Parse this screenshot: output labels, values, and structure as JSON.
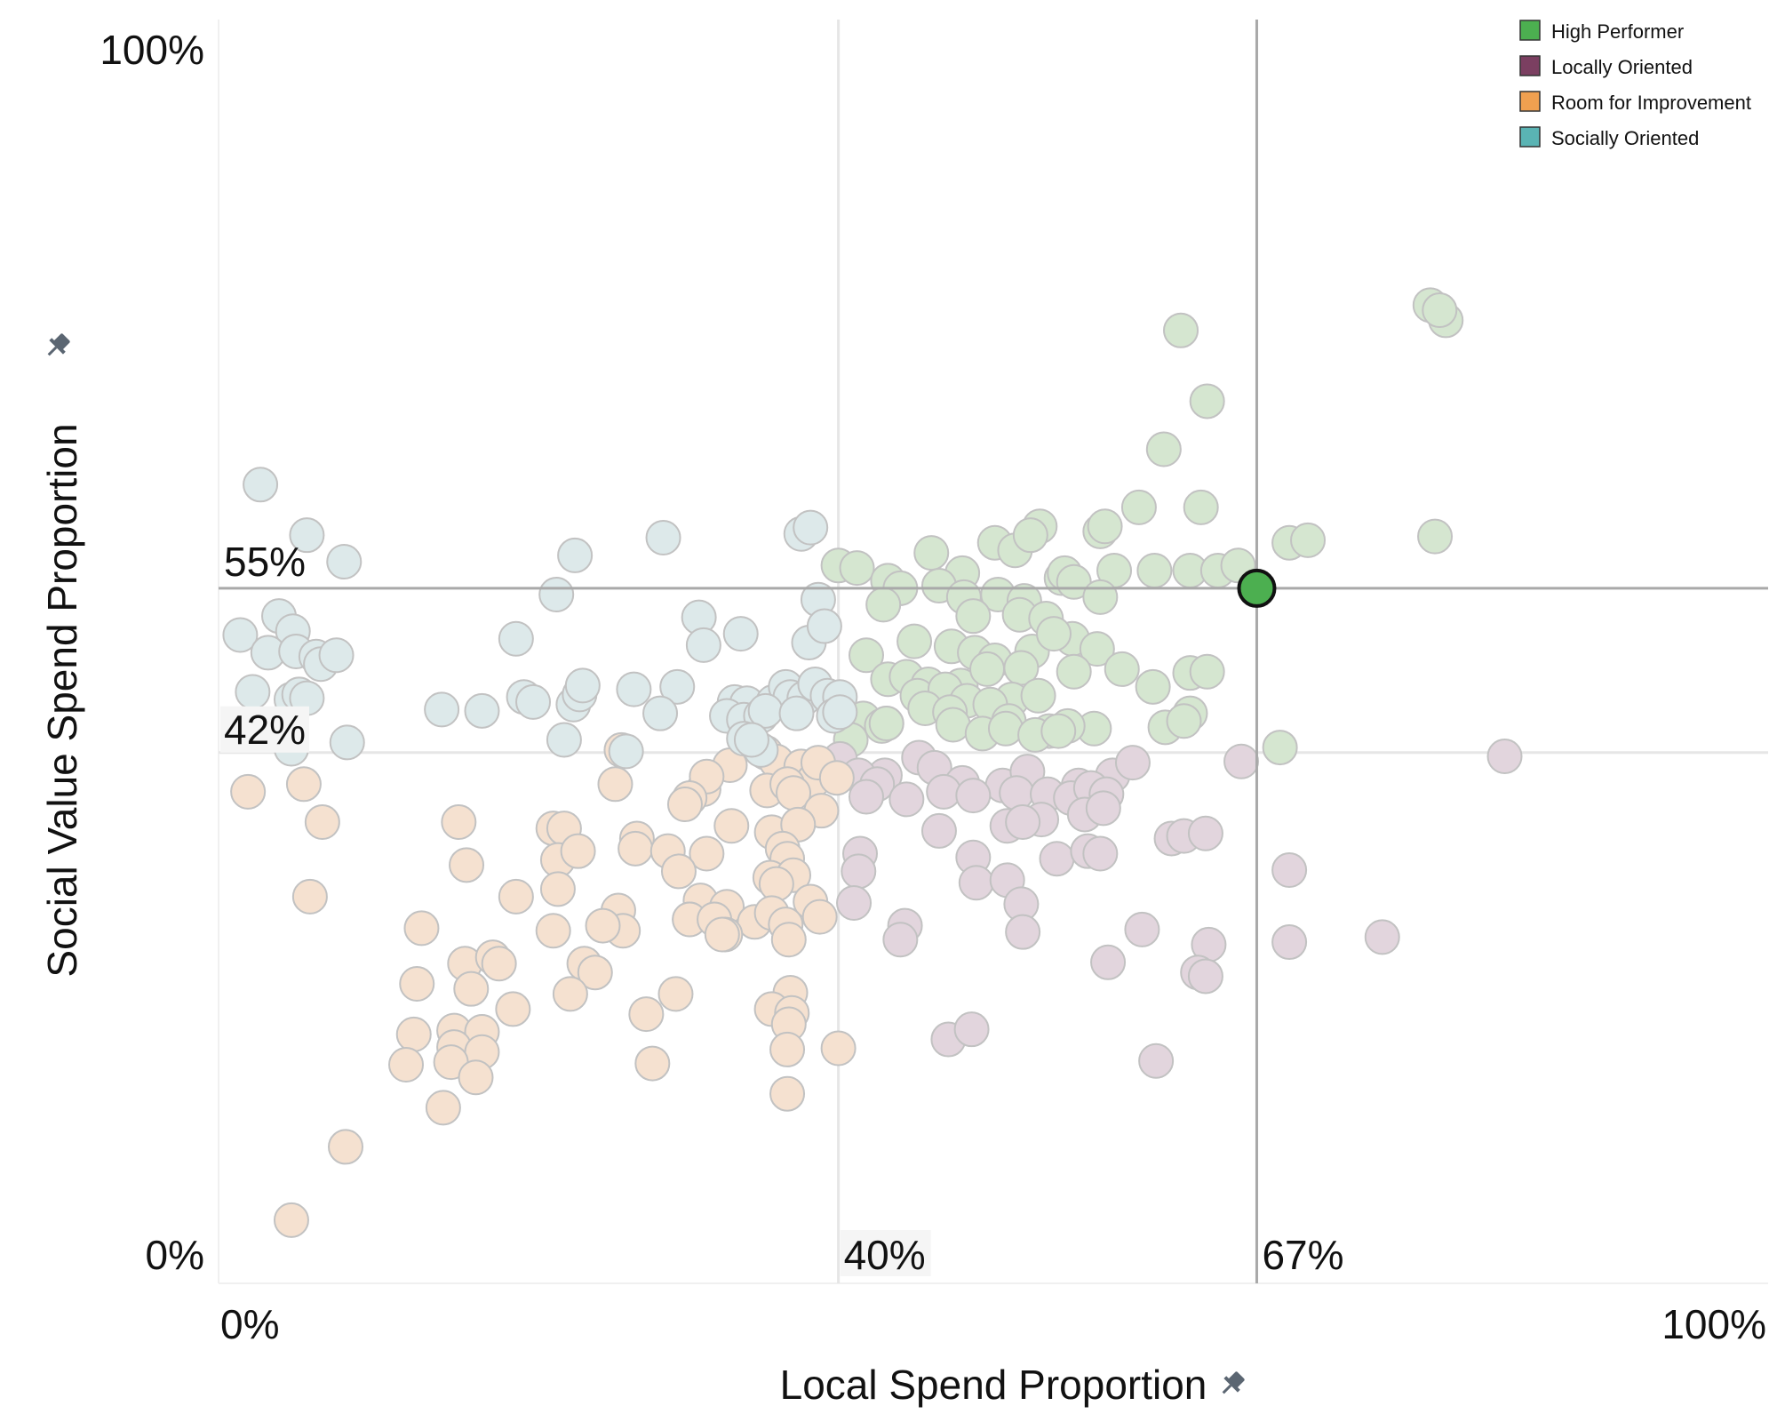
{
  "chart_data": {
    "type": "scatter",
    "xlabel": "Local Spend Proportion",
    "ylabel": "Social Value Spend Proportion",
    "xlim": [
      0,
      100
    ],
    "ylim": [
      0,
      100
    ],
    "x_ticks": [
      "0%",
      "100%"
    ],
    "y_ticks": [
      "0%",
      "100%"
    ],
    "grid": false,
    "legend_position": "top-right",
    "reference_lines": {
      "x_highlight": {
        "value": 67,
        "label": "67%"
      },
      "y_highlight": {
        "value": 55,
        "label": "55%"
      },
      "x_average": {
        "value": 40,
        "label": "40%"
      },
      "y_average": {
        "value": 42,
        "label": "42%"
      }
    },
    "highlighted_point": {
      "x": 67,
      "y": 55,
      "category": "High Performer"
    },
    "series": [
      {
        "name": "High Performer",
        "color": "#4caf50",
        "faded_color": "#d5e6d0",
        "points": [
          [
            78.2,
            77.4
          ],
          [
            79.2,
            76.2
          ],
          [
            78.8,
            77.0
          ],
          [
            62.1,
            75.4
          ],
          [
            63.8,
            69.8
          ],
          [
            61.0,
            66.0
          ],
          [
            59.4,
            61.4
          ],
          [
            63.4,
            61.4
          ],
          [
            53.0,
            59.9
          ],
          [
            56.9,
            59.5
          ],
          [
            57.2,
            59.9
          ],
          [
            69.1,
            58.6
          ],
          [
            70.3,
            58.8
          ],
          [
            78.5,
            59.1
          ],
          [
            40.0,
            56.8
          ],
          [
            41.2,
            56.6
          ],
          [
            46.0,
            57.8
          ],
          [
            48.0,
            56.2
          ],
          [
            50.1,
            58.6
          ],
          [
            51.4,
            58.0
          ],
          [
            52.4,
            59.2
          ],
          [
            57.8,
            56.4
          ],
          [
            60.4,
            56.4
          ],
          [
            62.7,
            56.4
          ],
          [
            64.5,
            56.4
          ],
          [
            65.8,
            56.8
          ],
          [
            43.2,
            55.6
          ],
          [
            44.0,
            55.0
          ],
          [
            46.5,
            55.2
          ],
          [
            48.1,
            54.3
          ],
          [
            50.3,
            54.5
          ],
          [
            52.0,
            54.0
          ],
          [
            54.4,
            55.8
          ],
          [
            54.6,
            56.2
          ],
          [
            55.2,
            55.5
          ],
          [
            56.9,
            54.3
          ],
          [
            42.9,
            53.7
          ],
          [
            48.7,
            52.8
          ],
          [
            51.7,
            52.9
          ],
          [
            53.4,
            52.6
          ],
          [
            55.1,
            51.0
          ],
          [
            41.8,
            49.7
          ],
          [
            44.9,
            50.8
          ],
          [
            47.3,
            50.4
          ],
          [
            48.8,
            49.9
          ],
          [
            50.1,
            49.3
          ],
          [
            52.5,
            50.0
          ],
          [
            53.9,
            51.4
          ],
          [
            56.7,
            50.2
          ],
          [
            43.2,
            47.8
          ],
          [
            44.4,
            48.0
          ],
          [
            45.8,
            47.4
          ],
          [
            47.9,
            47.3
          ],
          [
            49.6,
            48.6
          ],
          [
            51.8,
            48.7
          ],
          [
            55.2,
            48.4
          ],
          [
            58.3,
            48.6
          ],
          [
            60.3,
            47.2
          ],
          [
            62.7,
            48.3
          ],
          [
            63.8,
            48.4
          ],
          [
            45.1,
            46.5
          ],
          [
            46.9,
            47.0
          ],
          [
            48.3,
            46.1
          ],
          [
            51.2,
            46.2
          ],
          [
            52.9,
            46.5
          ],
          [
            56.5,
            43.9
          ],
          [
            61.1,
            44.0
          ],
          [
            62.7,
            45.1
          ],
          [
            41.6,
            44.7
          ],
          [
            43.1,
            44.3
          ],
          [
            45.6,
            45.5
          ],
          [
            47.2,
            45.2
          ],
          [
            49.8,
            45.8
          ],
          [
            51.0,
            44.5
          ],
          [
            53.6,
            43.7
          ],
          [
            54.8,
            44.1
          ],
          [
            40.8,
            43.0
          ],
          [
            42.8,
            44.1
          ],
          [
            47.4,
            44.2
          ],
          [
            49.3,
            43.5
          ],
          [
            50.8,
            43.9
          ],
          [
            52.7,
            43.4
          ],
          [
            54.2,
            43.7
          ],
          [
            68.5,
            42.4
          ],
          [
            43.1,
            44.3
          ],
          [
            62.3,
            44.5
          ]
        ]
      },
      {
        "name": "Locally Oriented",
        "color": "#7b3f61",
        "faded_color": "#e2d5dd",
        "points": [
          [
            40.1,
            41.5
          ],
          [
            43.0,
            40.2
          ],
          [
            45.2,
            41.6
          ],
          [
            46.2,
            40.8
          ],
          [
            48.0,
            39.6
          ],
          [
            50.6,
            39.4
          ],
          [
            52.2,
            40.5
          ],
          [
            55.5,
            39.4
          ],
          [
            57.7,
            40.2
          ],
          [
            59.0,
            41.2
          ],
          [
            66.0,
            41.3
          ],
          [
            83.0,
            41.7
          ],
          [
            41.3,
            40.2
          ],
          [
            42.5,
            39.5
          ],
          [
            44.4,
            38.3
          ],
          [
            46.8,
            38.9
          ],
          [
            48.7,
            38.6
          ],
          [
            51.5,
            38.8
          ],
          [
            53.5,
            38.7
          ],
          [
            55.0,
            38.4
          ],
          [
            56.3,
            39.2
          ],
          [
            57.3,
            38.7
          ],
          [
            41.8,
            38.5
          ],
          [
            50.9,
            36.2
          ],
          [
            53.1,
            36.7
          ],
          [
            55.9,
            37.1
          ],
          [
            57.1,
            37.6
          ],
          [
            46.5,
            35.8
          ],
          [
            51.9,
            36.5
          ],
          [
            61.5,
            35.2
          ],
          [
            62.3,
            35.4
          ],
          [
            63.7,
            35.6
          ],
          [
            41.4,
            34.0
          ],
          [
            48.7,
            33.7
          ],
          [
            54.1,
            33.6
          ],
          [
            56.1,
            34.2
          ],
          [
            56.9,
            34.0
          ],
          [
            41.3,
            32.6
          ],
          [
            48.9,
            31.7
          ],
          [
            50.9,
            31.9
          ],
          [
            69.1,
            32.7
          ],
          [
            41.0,
            30.1
          ],
          [
            51.8,
            30.0
          ],
          [
            44.3,
            28.3
          ],
          [
            44.0,
            27.2
          ],
          [
            51.9,
            27.8
          ],
          [
            59.6,
            28.0
          ],
          [
            63.9,
            26.8
          ],
          [
            69.1,
            27.0
          ],
          [
            75.1,
            27.4
          ],
          [
            57.4,
            25.4
          ],
          [
            63.2,
            24.6
          ],
          [
            63.7,
            24.3
          ],
          [
            47.1,
            19.3
          ],
          [
            48.6,
            20.1
          ],
          [
            60.5,
            17.6
          ]
        ]
      },
      {
        "name": "Room for Improvement",
        "color": "#f0a050",
        "faded_color": "#f5e1d0",
        "points": [
          [
            26.0,
            42.2
          ],
          [
            33.0,
            41.0
          ],
          [
            35.3,
            42.0
          ],
          [
            36.0,
            41.3
          ],
          [
            37.6,
            40.9
          ],
          [
            38.4,
            39.8
          ],
          [
            38.7,
            41.2
          ],
          [
            39.9,
            40.0
          ],
          [
            1.9,
            38.9
          ],
          [
            5.5,
            39.5
          ],
          [
            25.6,
            39.5
          ],
          [
            31.3,
            39.1
          ],
          [
            31.5,
            40.1
          ],
          [
            30.4,
            38.4
          ],
          [
            35.4,
            39.0
          ],
          [
            36.7,
            39.5
          ],
          [
            37.1,
            38.8
          ],
          [
            38.9,
            37.4
          ],
          [
            30.1,
            37.9
          ],
          [
            6.7,
            36.5
          ],
          [
            15.5,
            36.5
          ],
          [
            21.6,
            36.0
          ],
          [
            22.3,
            36.0
          ],
          [
            33.1,
            36.2
          ],
          [
            35.7,
            35.7
          ],
          [
            37.4,
            36.3
          ],
          [
            27.0,
            35.2
          ],
          [
            26.9,
            34.4
          ],
          [
            29.0,
            34.2
          ],
          [
            31.5,
            34.0
          ],
          [
            21.9,
            33.5
          ],
          [
            23.2,
            34.2
          ],
          [
            36.4,
            34.4
          ],
          [
            36.7,
            33.6
          ],
          [
            16.0,
            33.1
          ],
          [
            29.7,
            32.6
          ],
          [
            35.6,
            32.1
          ],
          [
            37.1,
            32.3
          ],
          [
            5.9,
            30.6
          ],
          [
            19.2,
            30.6
          ],
          [
            21.9,
            31.2
          ],
          [
            31.1,
            30.3
          ],
          [
            32.8,
            29.8
          ],
          [
            36.0,
            31.6
          ],
          [
            38.2,
            30.2
          ],
          [
            25.8,
            29.5
          ],
          [
            30.4,
            28.8
          ],
          [
            30.4,
            28.8
          ],
          [
            32.0,
            28.8
          ],
          [
            34.6,
            28.6
          ],
          [
            35.7,
            29.3
          ],
          [
            36.6,
            28.4
          ],
          [
            38.8,
            29.0
          ],
          [
            26.1,
            27.9
          ],
          [
            13.1,
            28.1
          ],
          [
            21.6,
            27.9
          ],
          [
            24.8,
            28.3
          ],
          [
            32.7,
            27.6
          ],
          [
            32.5,
            27.6
          ],
          [
            36.8,
            27.2
          ],
          [
            15.9,
            25.3
          ],
          [
            17.7,
            25.8
          ],
          [
            18.1,
            25.3
          ],
          [
            23.6,
            25.3
          ],
          [
            24.3,
            24.6
          ],
          [
            12.8,
            23.7
          ],
          [
            16.3,
            23.3
          ],
          [
            22.7,
            22.9
          ],
          [
            29.5,
            22.9
          ],
          [
            36.9,
            23.0
          ],
          [
            35.7,
            21.7
          ],
          [
            37.0,
            21.4
          ],
          [
            19.0,
            21.7
          ],
          [
            27.6,
            21.3
          ],
          [
            36.8,
            20.5
          ],
          [
            12.6,
            19.7
          ],
          [
            15.2,
            20.0
          ],
          [
            17.0,
            19.9
          ],
          [
            15.2,
            18.7
          ],
          [
            17.0,
            18.3
          ],
          [
            15.0,
            17.5
          ],
          [
            12.1,
            17.3
          ],
          [
            28.0,
            17.4
          ],
          [
            36.7,
            18.5
          ],
          [
            40.0,
            18.6
          ],
          [
            16.6,
            16.3
          ],
          [
            36.7,
            15.0
          ],
          [
            14.5,
            13.9
          ],
          [
            8.2,
            10.8
          ],
          [
            4.7,
            5.0
          ]
        ]
      },
      {
        "name": "Socially Oriented",
        "color": "#5ab4b4",
        "faded_color": "#dde9ea",
        "points": [
          [
            2.7,
            63.2
          ],
          [
            5.7,
            59.2
          ],
          [
            8.1,
            57.1
          ],
          [
            23.0,
            57.6
          ],
          [
            28.7,
            59.0
          ],
          [
            37.6,
            59.3
          ],
          [
            38.2,
            59.8
          ],
          [
            21.8,
            54.5
          ],
          [
            38.7,
            54.1
          ],
          [
            1.4,
            51.3
          ],
          [
            3.9,
            52.8
          ],
          [
            4.8,
            51.6
          ],
          [
            3.2,
            49.9
          ],
          [
            5.0,
            50.0
          ],
          [
            6.3,
            49.6
          ],
          [
            6.6,
            49.0
          ],
          [
            7.6,
            49.7
          ],
          [
            19.2,
            51.0
          ],
          [
            31.0,
            52.7
          ],
          [
            31.3,
            50.5
          ],
          [
            33.7,
            51.4
          ],
          [
            38.1,
            50.7
          ],
          [
            39.1,
            52.0
          ],
          [
            2.2,
            46.8
          ],
          [
            4.7,
            46.2
          ],
          [
            5.2,
            46.6
          ],
          [
            5.7,
            46.3
          ],
          [
            19.7,
            46.4
          ],
          [
            20.3,
            46.0
          ],
          [
            22.9,
            45.8
          ],
          [
            23.3,
            46.6
          ],
          [
            23.5,
            47.3
          ],
          [
            26.8,
            47.0
          ],
          [
            29.6,
            47.2
          ],
          [
            33.3,
            46.0
          ],
          [
            34.1,
            45.9
          ],
          [
            35.8,
            46.0
          ],
          [
            36.6,
            47.2
          ],
          [
            36.9,
            46.4
          ],
          [
            37.8,
            46.3
          ],
          [
            38.5,
            47.4
          ],
          [
            39.3,
            46.5
          ],
          [
            40.1,
            46.4
          ],
          [
            14.4,
            45.4
          ],
          [
            17.0,
            45.3
          ],
          [
            28.5,
            45.1
          ],
          [
            32.8,
            44.9
          ],
          [
            33.9,
            44.6
          ],
          [
            35.0,
            44.9
          ],
          [
            35.3,
            45.3
          ],
          [
            37.3,
            45.1
          ],
          [
            39.7,
            44.9
          ],
          [
            40.1,
            45.2
          ],
          [
            4.7,
            42.3
          ],
          [
            8.3,
            42.8
          ],
          [
            22.3,
            43.0
          ],
          [
            33.9,
            43.1
          ],
          [
            35.0,
            42.2
          ],
          [
            26.3,
            42.1
          ],
          [
            34.4,
            43.0
          ]
        ]
      }
    ]
  },
  "legend": {
    "items": [
      {
        "label": "High Performer",
        "color": "#4caf50"
      },
      {
        "label": "Locally Oriented",
        "color": "#7b3f61"
      },
      {
        "label": "Room for Improvement",
        "color": "#f0a050"
      },
      {
        "label": "Socially Oriented",
        "color": "#5ab4b4"
      }
    ]
  },
  "icons": {
    "x_axis_pin": "pin-icon",
    "y_axis_pin": "pin-icon"
  }
}
